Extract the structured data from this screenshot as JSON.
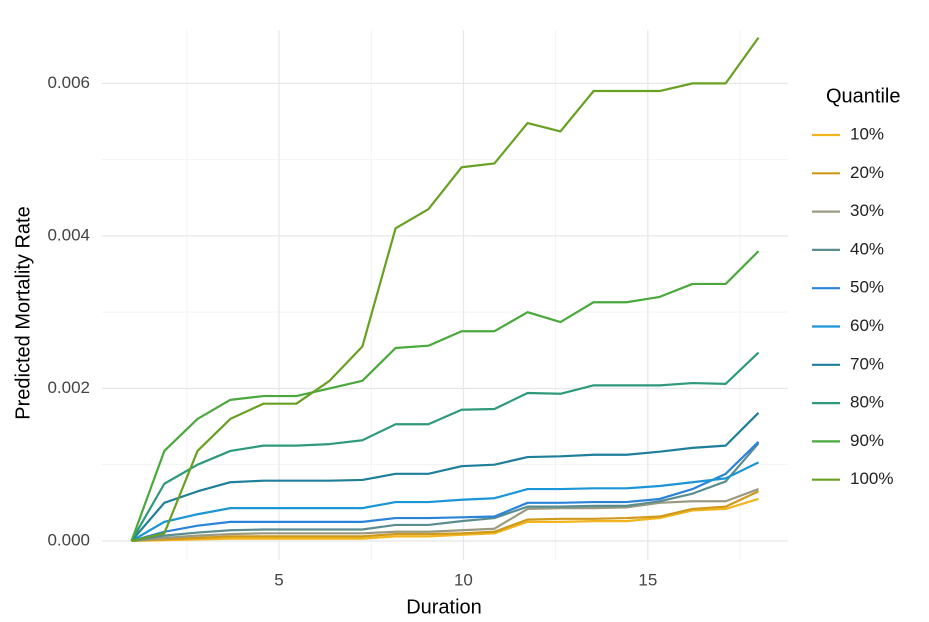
{
  "chart_data": {
    "type": "line",
    "x_label": "Duration",
    "y_label": "Predicted Mortality Rate",
    "legend_title": "Quantile",
    "legend_position": "right",
    "grid": true,
    "x": [
      1,
      1.89,
      2.79,
      3.68,
      4.58,
      5.47,
      6.37,
      7.26,
      8.16,
      9.05,
      9.95,
      10.84,
      11.74,
      12.63,
      13.53,
      14.42,
      15.32,
      16.21,
      17.11,
      18
    ],
    "xlim": [
      0.2,
      18.8
    ],
    "xticks": [
      5,
      10,
      15
    ],
    "ylim": [
      -0.00025,
      0.0067
    ],
    "yticks": [
      {
        "value": 0,
        "label": "0.000"
      },
      {
        "value": 0.002,
        "label": "0.002"
      },
      {
        "value": 0.004,
        "label": "0.004"
      },
      {
        "value": 0.006,
        "label": "0.006"
      }
    ],
    "series": [
      {
        "name": "10%",
        "color": "#f2b51d",
        "values": [
          0,
          1e-05,
          2e-05,
          3e-05,
          3e-05,
          3e-05,
          3e-05,
          3e-05,
          6e-05,
          6e-05,
          8e-05,
          0.0001,
          0.00025,
          0.00025,
          0.00026,
          0.00026,
          0.0003,
          0.0004,
          0.00042,
          0.00055
        ]
      },
      {
        "name": "20%",
        "color": "#cf9a1c",
        "values": [
          0,
          2e-05,
          4e-05,
          6e-05,
          6e-05,
          6e-05,
          6e-05,
          6e-05,
          9e-05,
          9e-05,
          0.0001,
          0.00012,
          0.00028,
          0.00029,
          0.00029,
          0.0003,
          0.00032,
          0.00042,
          0.00045,
          0.00065
        ]
      },
      {
        "name": "30%",
        "color": "#9a9a82",
        "values": [
          0,
          4e-05,
          7e-05,
          9e-05,
          0.0001,
          0.0001,
          0.0001,
          0.0001,
          0.00012,
          0.00012,
          0.00014,
          0.00016,
          0.00042,
          0.00043,
          0.00043,
          0.00044,
          0.0005,
          0.00052,
          0.00052,
          0.00068
        ]
      },
      {
        "name": "40%",
        "color": "#5b8c8e",
        "values": [
          0,
          7e-05,
          0.00011,
          0.00014,
          0.00015,
          0.00015,
          0.00015,
          0.00015,
          0.00021,
          0.00021,
          0.00026,
          0.0003,
          0.00045,
          0.00045,
          0.00046,
          0.00046,
          0.00052,
          0.00062,
          0.00078,
          0.00128
        ]
      },
      {
        "name": "50%",
        "color": "#2b82d9",
        "values": [
          0,
          0.00012,
          0.0002,
          0.00025,
          0.00025,
          0.00025,
          0.00025,
          0.00025,
          0.0003,
          0.0003,
          0.00031,
          0.00032,
          0.0005,
          0.0005,
          0.00051,
          0.00051,
          0.00055,
          0.00068,
          0.00088,
          0.0013
        ]
      },
      {
        "name": "60%",
        "color": "#1c95d6",
        "values": [
          0,
          0.00025,
          0.00035,
          0.00043,
          0.00043,
          0.00043,
          0.00043,
          0.00043,
          0.00051,
          0.00051,
          0.00054,
          0.00056,
          0.00068,
          0.00068,
          0.00069,
          0.00069,
          0.00072,
          0.00077,
          0.00082,
          0.00103
        ]
      },
      {
        "name": "70%",
        "color": "#1f7f9b",
        "values": [
          0,
          0.0005,
          0.00065,
          0.00077,
          0.00079,
          0.00079,
          0.00079,
          0.0008,
          0.00088,
          0.00088,
          0.00098,
          0.001,
          0.0011,
          0.00111,
          0.00113,
          0.00113,
          0.00117,
          0.00122,
          0.00125,
          0.00168
        ]
      },
      {
        "name": "80%",
        "color": "#2f9a7b",
        "values": [
          0,
          0.00075,
          0.001,
          0.00118,
          0.00125,
          0.00125,
          0.00127,
          0.00132,
          0.00153,
          0.00153,
          0.00172,
          0.00173,
          0.00194,
          0.00193,
          0.00204,
          0.00204,
          0.00204,
          0.00207,
          0.00206,
          0.00247
        ]
      },
      {
        "name": "90%",
        "color": "#4aa83c",
        "values": [
          0,
          0.00118,
          0.0016,
          0.00185,
          0.0019,
          0.0019,
          0.002,
          0.0021,
          0.00253,
          0.00256,
          0.00275,
          0.00275,
          0.003,
          0.00287,
          0.00313,
          0.00313,
          0.0032,
          0.00337,
          0.00337,
          0.0038
        ]
      },
      {
        "name": "100%",
        "color": "#68a022",
        "values": [
          0,
          0.0001,
          0.00118,
          0.0016,
          0.0018,
          0.0018,
          0.0021,
          0.00255,
          0.0041,
          0.00435,
          0.0049,
          0.00495,
          0.00548,
          0.00537,
          0.0059,
          0.0059,
          0.0059,
          0.006,
          0.006,
          0.0066
        ]
      }
    ]
  }
}
